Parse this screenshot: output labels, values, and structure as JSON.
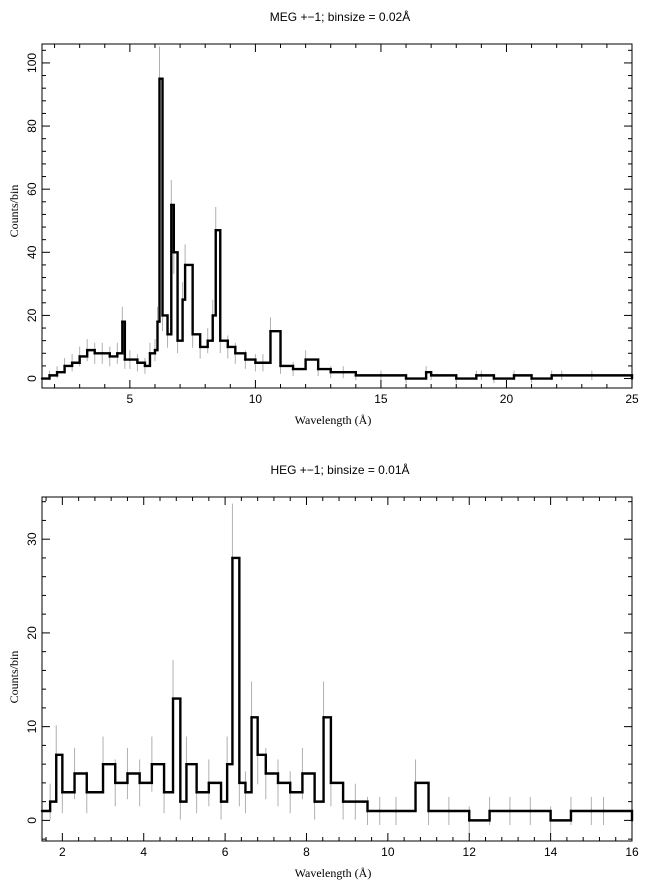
{
  "chart_data": [
    {
      "type": "line",
      "title": "MEG +−1; binsize = 0.02Å",
      "xlabel": "Wavelength (Å)",
      "ylabel": "Counts/bin",
      "xlim": [
        1.5,
        25
      ],
      "ylim": [
        -3,
        106
      ],
      "xticks": [
        5,
        10,
        15,
        20,
        25
      ],
      "yticks": [
        0,
        20,
        40,
        60,
        80,
        100
      ],
      "grid": false,
      "colors": {
        "line": "#000000",
        "error": "#b0b0b0"
      },
      "series": [
        {
          "x": [
            1.5,
            1.8,
            2.1,
            2.4,
            2.7,
            3.0,
            3.3,
            3.6,
            3.9,
            4.2,
            4.5,
            4.7,
            4.8,
            5.0,
            5.3,
            5.6,
            5.8,
            6.0,
            6.1,
            6.18,
            6.3,
            6.5,
            6.65,
            6.75,
            6.9,
            7.1,
            7.2,
            7.5,
            7.8,
            8.1,
            8.3,
            8.42,
            8.6,
            8.9,
            9.2,
            9.6,
            10.0,
            10.3,
            10.6,
            11.0,
            11.5,
            12.0,
            12.5,
            13.0,
            13.5,
            14.0,
            15.0,
            16.0,
            16.8,
            17.0,
            18.0,
            18.8,
            19.0,
            19.5,
            20.3,
            21.0,
            21.8,
            22.2,
            23.4,
            25.0
          ],
          "y": [
            0,
            1,
            2,
            4,
            5,
            7,
            9,
            8,
            8,
            7,
            8,
            18,
            6,
            6,
            5,
            4,
            8,
            9,
            18,
            95,
            20,
            14,
            55,
            40,
            12,
            25,
            36,
            14,
            10,
            12,
            20,
            47,
            12,
            10,
            8,
            6,
            5,
            5,
            15,
            4,
            3,
            6,
            3,
            2,
            2,
            1,
            1,
            0,
            2,
            1,
            0,
            1,
            1,
            0,
            1,
            0,
            1,
            1,
            1,
            0
          ]
        }
      ]
    },
    {
      "type": "line",
      "title": "HEG +−1; binsize = 0.01Å",
      "xlabel": "Wavelength (Å)",
      "ylabel": "Counts/bin",
      "xlim": [
        1.5,
        16
      ],
      "ylim": [
        -2.2,
        34.5
      ],
      "xticks": [
        2,
        4,
        6,
        8,
        10,
        12,
        14,
        16
      ],
      "yticks": [
        0,
        10,
        20,
        30
      ],
      "grid": false,
      "colors": {
        "line": "#000000",
        "error": "#b0b0b0"
      },
      "series": [
        {
          "x": [
            1.5,
            1.7,
            1.85,
            2.0,
            2.3,
            2.6,
            3.0,
            3.3,
            3.6,
            3.9,
            4.2,
            4.5,
            4.72,
            4.9,
            5.05,
            5.3,
            5.6,
            5.9,
            6.05,
            6.18,
            6.35,
            6.5,
            6.65,
            6.8,
            7.0,
            7.3,
            7.6,
            7.9,
            8.2,
            8.42,
            8.6,
            8.9,
            9.2,
            9.5,
            9.8,
            10.2,
            10.68,
            11.0,
            11.5,
            12.0,
            12.5,
            13.0,
            13.5,
            14.0,
            14.5,
            15.0,
            15.3,
            16.0
          ],
          "y": [
            1,
            2,
            7,
            3,
            5,
            3,
            6,
            4,
            5,
            4,
            6,
            3,
            13,
            2,
            6,
            3,
            4,
            2,
            6,
            28,
            4,
            3,
            11,
            7,
            5,
            4,
            3,
            5,
            2,
            11,
            4,
            2,
            2,
            1,
            1,
            1,
            4,
            1,
            1,
            0,
            1,
            1,
            1,
            0,
            1,
            1,
            1,
            0
          ]
        }
      ]
    }
  ]
}
